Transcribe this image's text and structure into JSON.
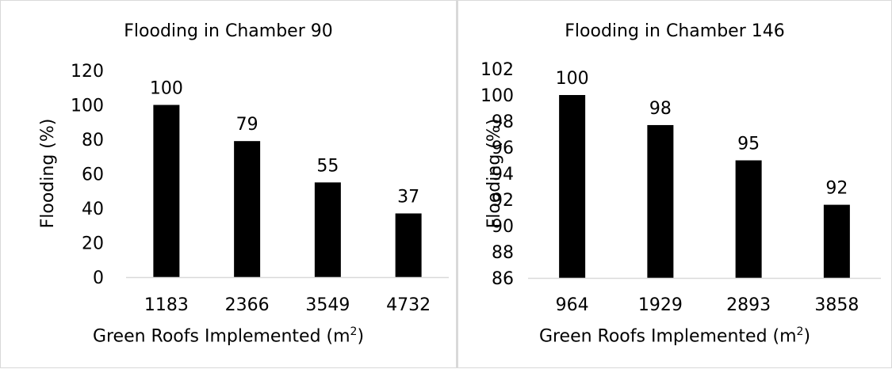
{
  "chart_data": [
    {
      "type": "bar",
      "title": "Flooding in Chamber 90",
      "xlabel": "Green Roofs Implemented (m",
      "xlabel_superscript": "2",
      "xlabel_suffix": ")",
      "ylabel": "Flooding (%)",
      "ylim": [
        0,
        120
      ],
      "yticks": [
        0,
        20,
        40,
        60,
        80,
        100,
        120
      ],
      "categories": [
        "1183",
        "2366",
        "3549",
        "4732"
      ],
      "values": [
        100,
        79,
        55,
        37
      ],
      "data_labels": [
        "100",
        "79",
        "55",
        "37"
      ],
      "bar_color": "#000000",
      "grid": false,
      "legend": "none"
    },
    {
      "type": "bar",
      "title": "Flooding in Chamber 146",
      "xlabel": "Green Roofs Implemented (m",
      "xlabel_superscript": "2",
      "xlabel_suffix": ")",
      "ylabel": "Flooding (%)",
      "ylim": [
        86,
        102
      ],
      "yticks": [
        86,
        88,
        90,
        92,
        94,
        96,
        98,
        100,
        102
      ],
      "categories": [
        "964",
        "1929",
        "2893",
        "3858"
      ],
      "values": [
        100,
        97.7,
        95,
        91.6
      ],
      "data_labels": [
        "100",
        "98",
        "95",
        "92"
      ],
      "bar_color": "#000000",
      "grid": false,
      "legend": "none"
    }
  ]
}
